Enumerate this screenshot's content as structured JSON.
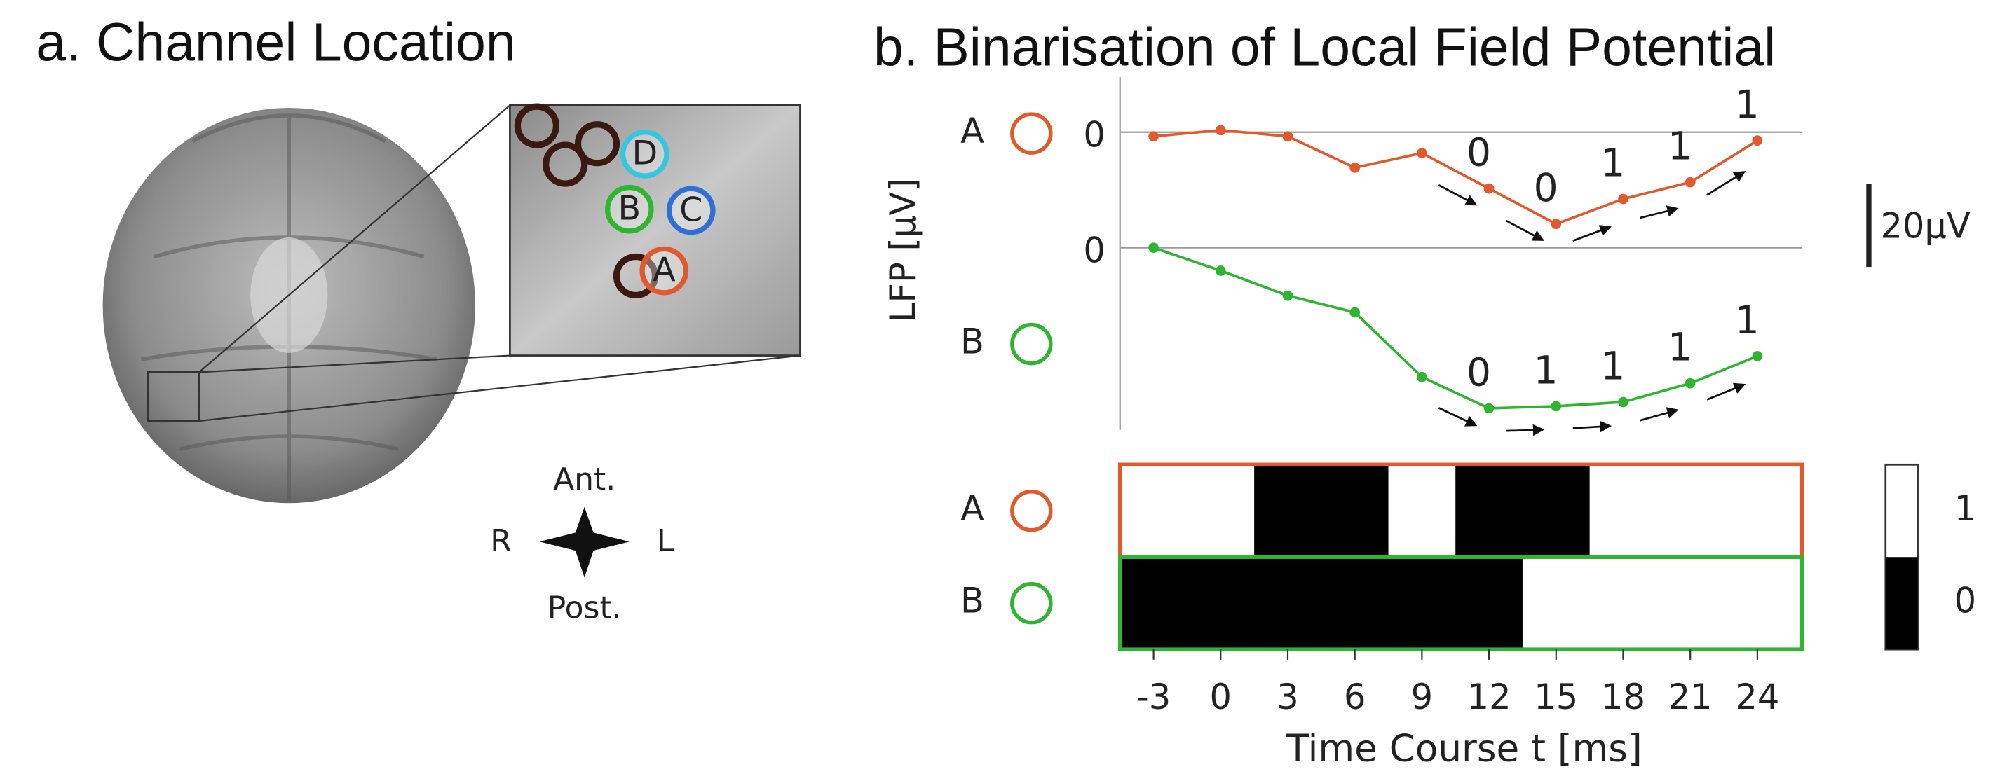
{
  "panel_a": {
    "title": "a. Channel Location",
    "channels": [
      {
        "label": "A",
        "color": "#e2592b"
      },
      {
        "label": "B",
        "color": "#2fb52f"
      },
      {
        "label": "C",
        "color": "#2f6fd6"
      },
      {
        "label": "D",
        "color": "#35c6e0"
      }
    ],
    "compass": {
      "anterior": "Ant.",
      "posterior": "Post.",
      "right": "R",
      "left": "L"
    }
  },
  "chart_data": {
    "type": "lfp-binarisation",
    "title": "b. Binarisation of Local Field Potential",
    "ylabel": "LFP [µV]",
    "xlabel": "Time Course t [ms]",
    "x": [
      -3,
      0,
      3,
      6,
      9,
      12,
      15,
      18,
      21,
      24
    ],
    "xlim": [
      -4.5,
      26
    ],
    "xticks": [
      -3,
      0,
      3,
      6,
      9,
      12,
      15,
      18,
      21,
      24
    ],
    "scale_bar": {
      "value": 20,
      "label": "20µV"
    },
    "series": [
      {
        "name": "A",
        "color": "#e2592b",
        "zero": 0,
        "values": [
          -1,
          0.5,
          -1,
          -8.5,
          -5,
          -13.5,
          -22,
          -16,
          -12,
          -2
        ],
        "binary_x": [
          12,
          15,
          18,
          21,
          24
        ],
        "binary": [
          0,
          0,
          1,
          1,
          1
        ],
        "zero_intervals": [
          [
            1.5,
            7.5
          ],
          [
            10.5,
            16.5
          ]
        ]
      },
      {
        "name": "B",
        "color": "#2fb52f",
        "zero": 0,
        "values": [
          0,
          -5.5,
          -11.5,
          -15.5,
          -31,
          -38.5,
          -38,
          -37,
          -32.5,
          -26
        ],
        "binary_x": [
          12,
          15,
          18,
          21,
          24
        ],
        "binary": [
          0,
          1,
          1,
          1,
          1
        ],
        "zero_intervals": [
          [
            -4.5,
            13.5
          ]
        ]
      }
    ],
    "colorbar_ticks": [
      1,
      0
    ]
  }
}
